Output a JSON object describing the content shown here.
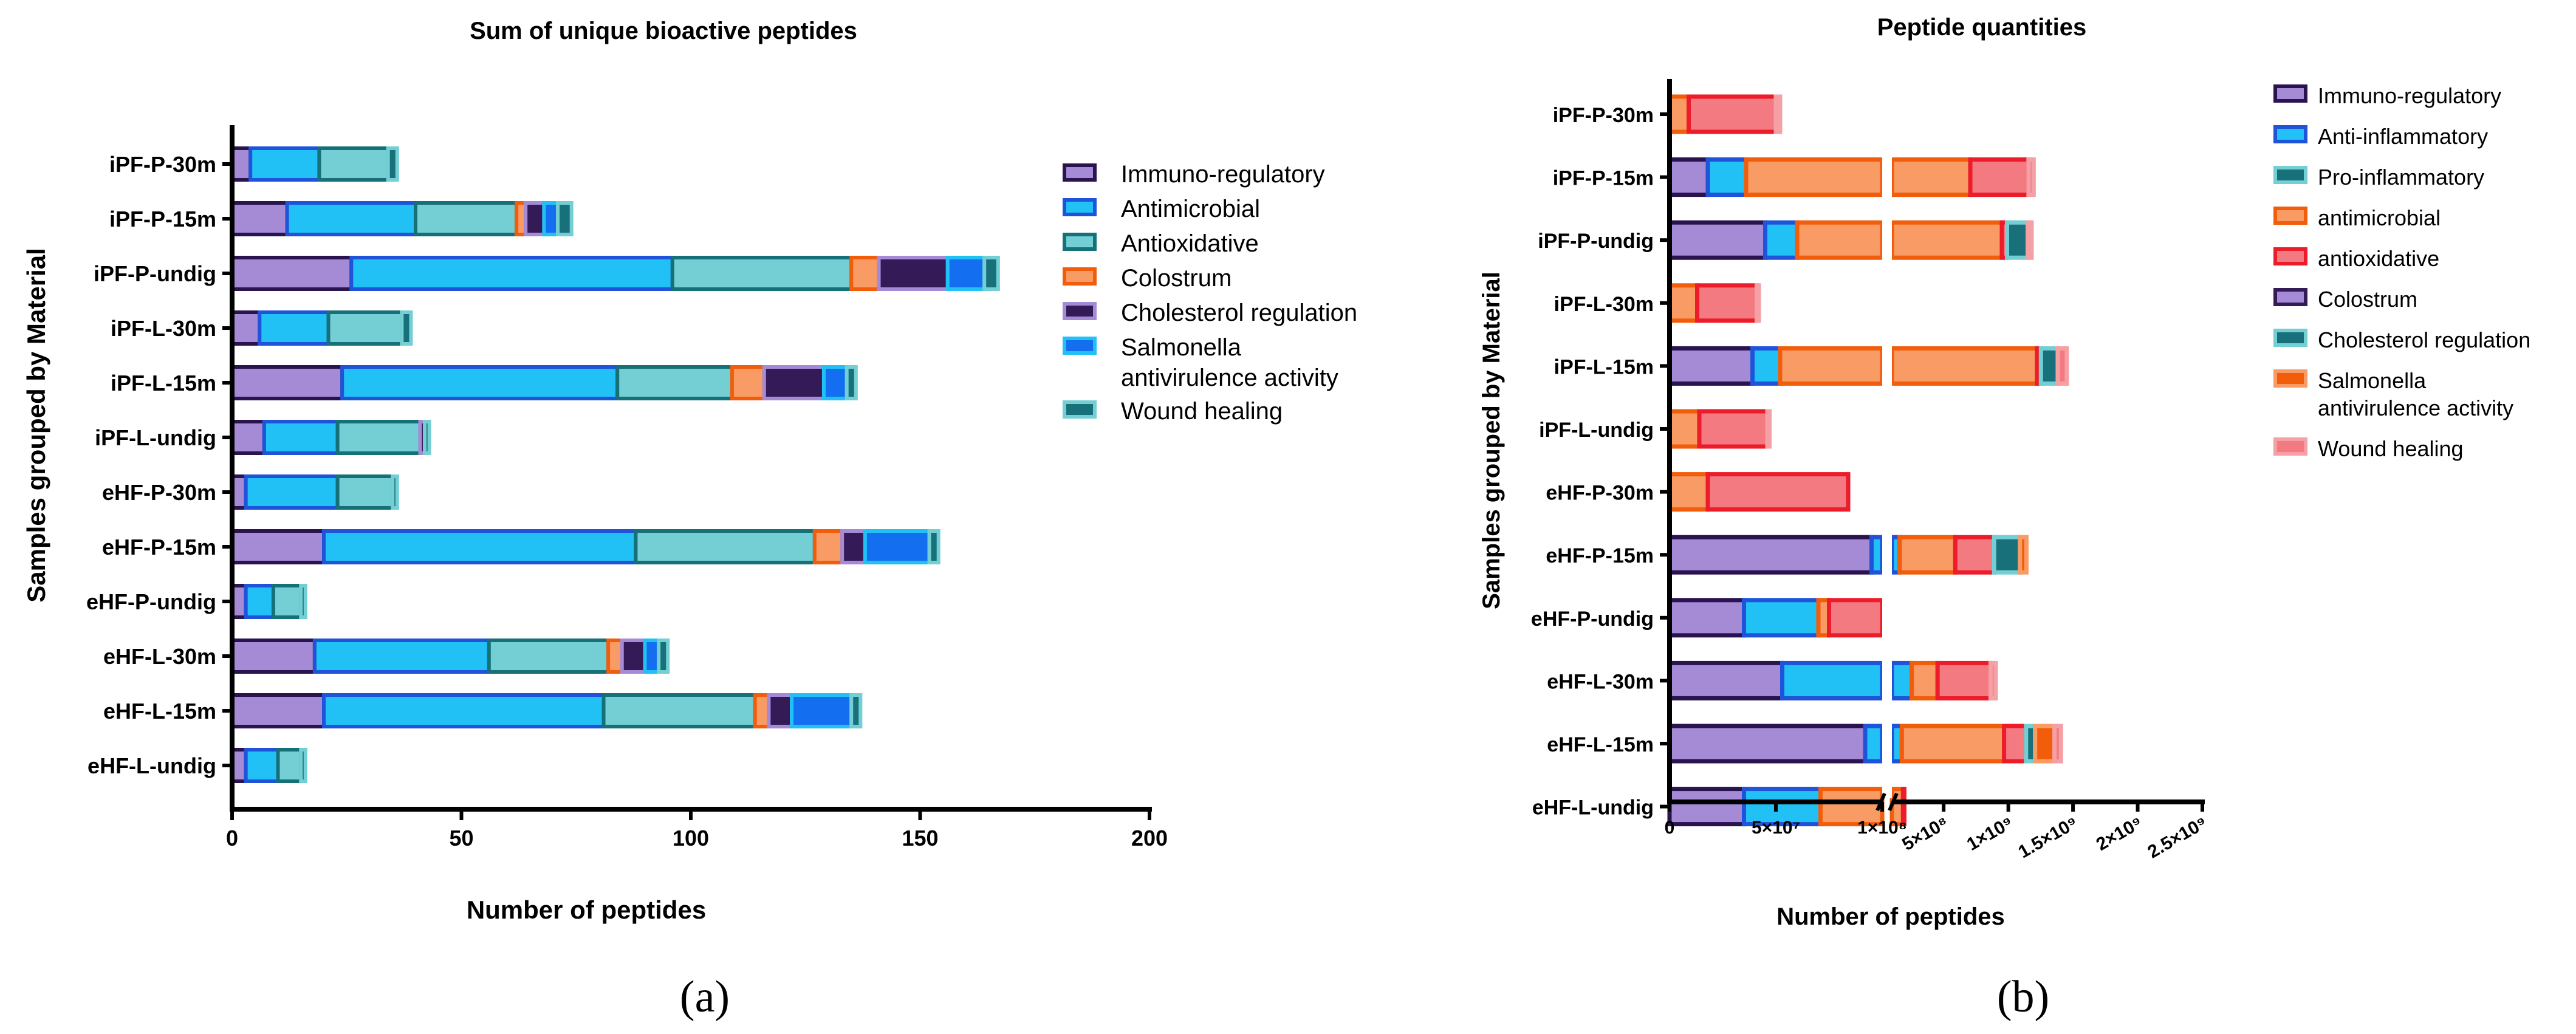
{
  "panel_labels": [
    "(a)",
    "(b)"
  ],
  "chart_data": [
    {
      "type": "bar",
      "stacked": true,
      "orientation": "horizontal",
      "title": "Sum of unique bioactive peptides",
      "xlabel": "Number of peptides",
      "ylabel": "Samples grouped by Material",
      "xlim": [
        0,
        200
      ],
      "xticks": [
        "0",
        "50",
        "100",
        "150",
        "200"
      ],
      "categories": [
        "iPF-P-30m",
        "iPF-P-15m",
        "iPF-P-undig",
        "iPF-L-30m",
        "iPF-L-15m",
        "iPF-L-undig",
        "eHF-P-30m",
        "eHF-P-15m",
        "eHF-P-undig",
        "eHF-L-30m",
        "eHF-L-15m",
        "eHF-L-undig"
      ],
      "series": [
        {
          "name": "Immuno-regulatory",
          "fill": "#a58ad6",
          "stroke": "#2a1450",
          "values": [
            4,
            12,
            26,
            6,
            24,
            7,
            3,
            20,
            3,
            18,
            20,
            3
          ]
        },
        {
          "name": "Antimicrobial",
          "fill": "#22c1f5",
          "stroke": "#1f53d9",
          "values": [
            15,
            28,
            70,
            15,
            60,
            16,
            20,
            68,
            6,
            38,
            61,
            7
          ]
        },
        {
          "name": "Antioxidative",
          "fill": "#73cfd3",
          "stroke": "#16707a",
          "values": [
            15,
            22,
            39,
            16,
            25,
            18,
            12,
            39,
            6,
            26,
            33,
            5
          ]
        },
        {
          "name": "Colostrum",
          "fill": "#f89b65",
          "stroke": "#f25d0c",
          "values": [
            0,
            2,
            6,
            0,
            7,
            0,
            0,
            6,
            0,
            3,
            3,
            0
          ]
        },
        {
          "name": "Cholesterol regulation",
          "fill": "#341b58",
          "stroke": "#a58ad6",
          "values": [
            0,
            4,
            15,
            0,
            13,
            1,
            0,
            5,
            0,
            5,
            5,
            0
          ]
        },
        {
          "name": "Salmonella antivirulence activity",
          "fill": "#146ef0",
          "stroke": "#22c1f5",
          "values": [
            0,
            3,
            8,
            0,
            5,
            0,
            0,
            14,
            0,
            3,
            13,
            0
          ]
        },
        {
          "name": "Wound healing",
          "fill": "#17707a",
          "stroke": "#73cfd3",
          "values": [
            2,
            3,
            3,
            2,
            2,
            1,
            1,
            2,
            1,
            2,
            2,
            1
          ]
        }
      ],
      "legend_position": "right"
    },
    {
      "type": "bar",
      "stacked": true,
      "orientation": "horizontal",
      "axis_break": true,
      "title": "Peptide quantities",
      "xlabel": "Number of peptides",
      "ylabel": "Samples grouped by Material",
      "x_segment1": {
        "range": [
          0,
          100000000
        ],
        "ticks": [
          "0",
          "5×10⁷",
          "1×10⁸"
        ],
        "tick_values": [
          0,
          50000000,
          100000000
        ]
      },
      "x_segment2": {
        "range": [
          100000000,
          2500000000
        ],
        "ticks": [
          "5×10⁸",
          "1×10⁹",
          "1.5×10⁹",
          "2×10⁹",
          "2.5×10⁹"
        ],
        "tick_values": [
          500000000,
          1000000000,
          1500000000,
          2000000000,
          2500000000
        ]
      },
      "categories": [
        "iPF-P-30m",
        "iPF-P-15m",
        "iPF-P-undig",
        "iPF-L-30m",
        "iPF-L-15m",
        "iPF-L-undig",
        "eHF-P-30m",
        "eHF-P-15m",
        "eHF-P-undig",
        "eHF-L-30m",
        "eHF-L-15m",
        "eHF-L-undig"
      ],
      "series": [
        {
          "name": "Immuno-regulatory",
          "fill": "#a58ad6",
          "stroke": "#2a1450",
          "values": [
            0,
            18000000,
            45000000,
            0,
            39000000,
            0,
            0,
            95000000,
            35000000,
            53000000,
            92000000,
            35000000
          ]
        },
        {
          "name": "Anti-inflammatory",
          "fill": "#22c1f5",
          "stroke": "#1f53d9",
          "values": [
            0,
            18000000,
            15000000,
            0,
            13000000,
            0,
            0,
            65000000,
            35000000,
            200000000,
            85000000,
            36000000
          ]
        },
        {
          "name": "Pro-inflammatory",
          "fill": "#17707a",
          "stroke": "#73cfd3",
          "values": [
            0,
            0,
            0,
            0,
            0,
            0,
            0,
            0,
            0,
            0,
            0,
            0
          ]
        },
        {
          "name": "antimicrobial",
          "fill": "#f89b65",
          "stroke": "#f25d0c",
          "values": [
            9000000,
            670000000,
            890000000,
            13000000,
            1170000000,
            14000000,
            18000000,
            430000000,
            5000000,
            200000000,
            790000000,
            115000000
          ]
        },
        {
          "name": "antioxidative",
          "fill": "#f47a82",
          "stroke": "#ec1c2a",
          "values": [
            41000000,
            450000000,
            40000000,
            28000000,
            30000000,
            32000000,
            66000000,
            300000000,
            25000000,
            410000000,
            170000000,
            10000000
          ]
        },
        {
          "name": "Colostrum",
          "fill": "#a58ad6",
          "stroke": "#341b58",
          "values": [
            0,
            0,
            0,
            0,
            0,
            0,
            0,
            0,
            0,
            0,
            0,
            0
          ]
        },
        {
          "name": "Cholesterol regulation",
          "fill": "#17707a",
          "stroke": "#73cfd3",
          "values": [
            0,
            0,
            160000000,
            0,
            130000000,
            0,
            0,
            200000000,
            0,
            0,
            70000000,
            0
          ]
        },
        {
          "name": "Salmonella antivirulence activity",
          "fill": "#f25d0c",
          "stroke": "#f89b65",
          "values": [
            0,
            0,
            0,
            0,
            0,
            0,
            0,
            50000000,
            0,
            0,
            150000000,
            0
          ]
        },
        {
          "name": "Wound healing",
          "fill": "#f47a82",
          "stroke": "#f4a0a5",
          "values": [
            2000000,
            40000000,
            30000000,
            1000000,
            70000000,
            1000000,
            0,
            0,
            0,
            40000000,
            50000000,
            0
          ]
        }
      ],
      "legend_position": "right"
    }
  ]
}
